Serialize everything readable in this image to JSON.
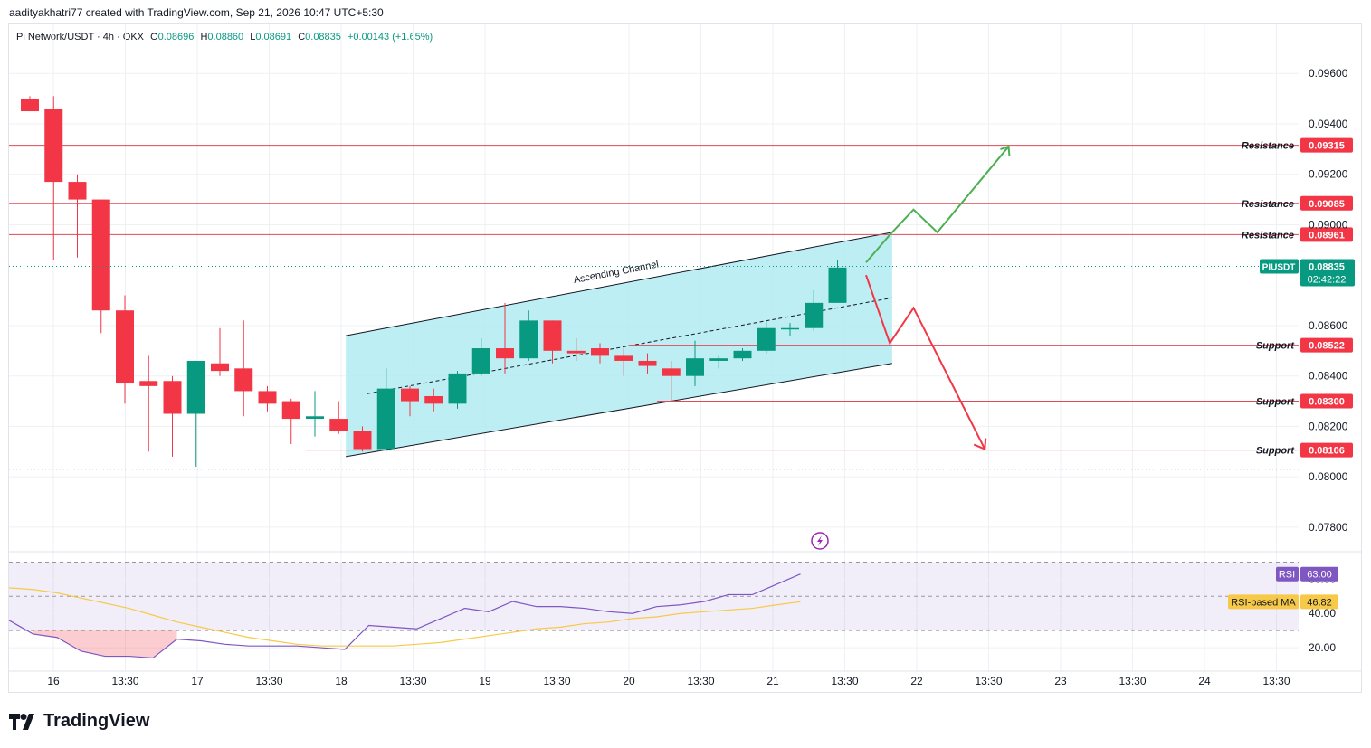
{
  "credit": "aadityakhatri77 created with TradingView.com, Sep 21, 2026 10:47 UTC+5:30",
  "legend": {
    "symbol": "Pi Network/USDT · 4h · OKX",
    "open_label": "O",
    "open": "0.08696",
    "high_label": "H",
    "high": "0.08860",
    "low_label": "L",
    "low": "0.08691",
    "close_label": "C",
    "close": "0.08835",
    "change": "+0.00143 (+1.65%)"
  },
  "brand": "TradingView",
  "chart_data": [
    {
      "type": "candlestick",
      "symbol": "PIUSDT",
      "interval": "4h",
      "ylim": [
        0.0771,
        0.0973
      ],
      "y_ticks": [
        "0.09600",
        "0.09400",
        "0.09200",
        "0.09000",
        "0.08600",
        "0.08400",
        "0.08200",
        "0.08000",
        "0.07800"
      ],
      "x_ticks": [
        "16",
        "13:30",
        "17",
        "13:30",
        "18",
        "13:30",
        "19",
        "13:30",
        "20",
        "13:30",
        "21",
        "13:30",
        "22",
        "13:30",
        "23",
        "13:30",
        "24",
        "13:30"
      ],
      "last_price": {
        "label": "PIUSDT",
        "value": "0.08835",
        "countdown": "02:42:22"
      },
      "candles": [
        {
          "o": 0.095,
          "h": 0.0951,
          "l": 0.0946,
          "c": 0.0945
        },
        {
          "o": 0.0946,
          "h": 0.0951,
          "l": 0.0886,
          "c": 0.0917
        },
        {
          "o": 0.0917,
          "h": 0.092,
          "l": 0.0887,
          "c": 0.091
        },
        {
          "o": 0.091,
          "h": 0.091,
          "l": 0.0857,
          "c": 0.0866
        },
        {
          "o": 0.0866,
          "h": 0.0872,
          "l": 0.0829,
          "c": 0.0837
        },
        {
          "o": 0.0838,
          "h": 0.0848,
          "l": 0.081,
          "c": 0.0836
        },
        {
          "o": 0.0838,
          "h": 0.084,
          "l": 0.0808,
          "c": 0.0825
        },
        {
          "o": 0.0825,
          "h": 0.0846,
          "l": 0.0804,
          "c": 0.0846
        },
        {
          "o": 0.0845,
          "h": 0.0859,
          "l": 0.084,
          "c": 0.0842
        },
        {
          "o": 0.0843,
          "h": 0.0862,
          "l": 0.0824,
          "c": 0.0834
        },
        {
          "o": 0.0834,
          "h": 0.0836,
          "l": 0.0826,
          "c": 0.0829
        },
        {
          "o": 0.083,
          "h": 0.0831,
          "l": 0.0813,
          "c": 0.0823
        },
        {
          "o": 0.0823,
          "h": 0.0834,
          "l": 0.0816,
          "c": 0.0824
        },
        {
          "o": 0.0823,
          "h": 0.083,
          "l": 0.0817,
          "c": 0.0818
        },
        {
          "o": 0.0818,
          "h": 0.082,
          "l": 0.081,
          "c": 0.0811
        },
        {
          "o": 0.0811,
          "h": 0.0843,
          "l": 0.081,
          "c": 0.0835
        },
        {
          "o": 0.0835,
          "h": 0.0836,
          "l": 0.0824,
          "c": 0.083
        },
        {
          "o": 0.0832,
          "h": 0.0835,
          "l": 0.0826,
          "c": 0.0829
        },
        {
          "o": 0.0829,
          "h": 0.0842,
          "l": 0.0827,
          "c": 0.0841
        },
        {
          "o": 0.0841,
          "h": 0.0855,
          "l": 0.084,
          "c": 0.0851
        },
        {
          "o": 0.0851,
          "h": 0.0869,
          "l": 0.0841,
          "c": 0.0847
        },
        {
          "o": 0.0847,
          "h": 0.0866,
          "l": 0.0846,
          "c": 0.0862
        },
        {
          "o": 0.0862,
          "h": 0.0862,
          "l": 0.0845,
          "c": 0.085
        },
        {
          "o": 0.085,
          "h": 0.0855,
          "l": 0.0846,
          "c": 0.0849
        },
        {
          "o": 0.0851,
          "h": 0.0853,
          "l": 0.0845,
          "c": 0.0848
        },
        {
          "o": 0.0848,
          "h": 0.0851,
          "l": 0.084,
          "c": 0.0846
        },
        {
          "o": 0.0846,
          "h": 0.0849,
          "l": 0.0841,
          "c": 0.0844
        },
        {
          "o": 0.0843,
          "h": 0.0846,
          "l": 0.083,
          "c": 0.084
        },
        {
          "o": 0.084,
          "h": 0.0854,
          "l": 0.0836,
          "c": 0.0847
        },
        {
          "o": 0.0846,
          "h": 0.0848,
          "l": 0.0843,
          "c": 0.0847
        },
        {
          "o": 0.0847,
          "h": 0.0851,
          "l": 0.0846,
          "c": 0.085
        },
        {
          "o": 0.085,
          "h": 0.0862,
          "l": 0.0849,
          "c": 0.0859
        },
        {
          "o": 0.0859,
          "h": 0.0861,
          "l": 0.0856,
          "c": 0.0859
        },
        {
          "o": 0.0859,
          "h": 0.0874,
          "l": 0.0858,
          "c": 0.0869
        },
        {
          "o": 0.0869,
          "h": 0.0886,
          "l": 0.0869,
          "c": 0.0883
        }
      ],
      "levels": [
        {
          "label": "Resistance",
          "value": 0.09315
        },
        {
          "label": "Resistance",
          "value": 0.09085
        },
        {
          "label": "Resistance",
          "value": 0.08961
        },
        {
          "label": "Support",
          "value": 0.08522
        },
        {
          "label": "Support",
          "value": 0.083
        },
        {
          "label": "Support",
          "value": 0.08106
        }
      ],
      "annotations": [
        {
          "text": "Ascending Channel"
        }
      ],
      "colors": {
        "up": "#089981",
        "down": "#f23645",
        "level": "#e04a56",
        "channel_fill": "#b2ebf2",
        "bull_path": "#4caf50",
        "bear_path": "#f23645"
      }
    },
    {
      "type": "line",
      "indicator": "RSI",
      "ylim": [
        10,
        75
      ],
      "y_ticks": [
        "60.00",
        "40.00",
        "20.00"
      ],
      "series": [
        {
          "name": "RSI",
          "value_label": "63.00",
          "color": "#7e57c2",
          "values": [
            36,
            28,
            26,
            18,
            15,
            15,
            14,
            25,
            24,
            22,
            21,
            21,
            21,
            20,
            19,
            33,
            32,
            31,
            37,
            43,
            41,
            47,
            44,
            44,
            43,
            41,
            40,
            44,
            45,
            47,
            51,
            51,
            57,
            63
          ]
        },
        {
          "name": "RSI-based MA",
          "value_label": "46.82",
          "color": "#f7c948",
          "values": [
            55,
            54,
            52,
            49,
            46,
            43,
            39,
            35,
            32,
            29,
            26,
            24,
            22,
            21,
            21,
            21,
            21,
            22,
            23,
            25,
            27,
            29,
            31,
            32,
            34,
            35,
            37,
            38,
            40,
            41,
            42,
            43,
            45,
            46.82
          ]
        }
      ]
    }
  ]
}
